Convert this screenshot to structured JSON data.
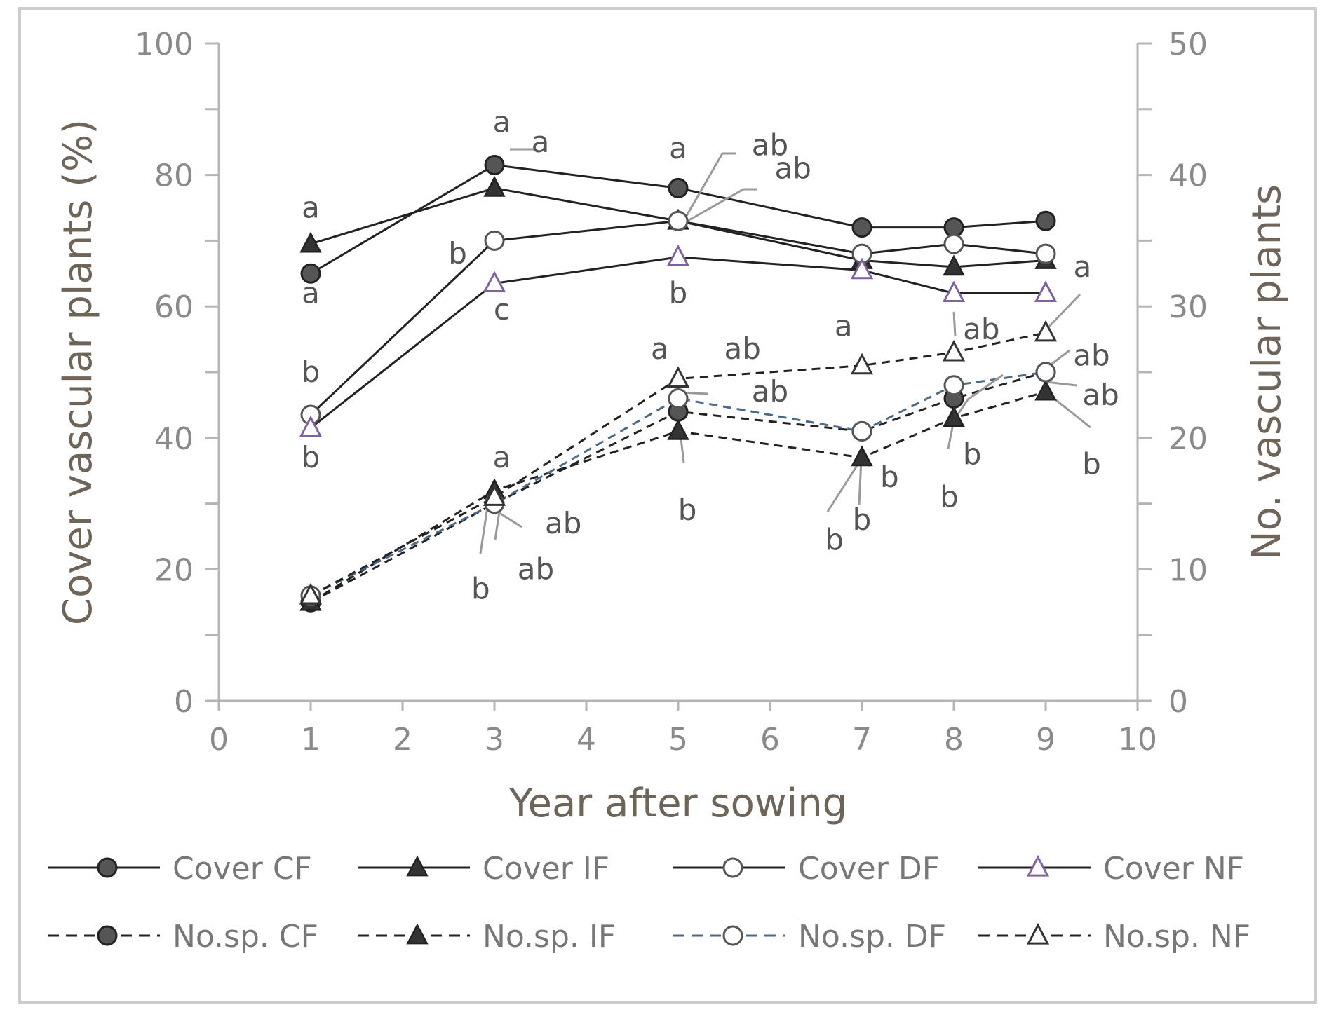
{
  "chart_data": {
    "type": "line",
    "xlabel": "Year after sowing",
    "ylabel_left": "Cover vascular plants (%)",
    "ylabel_right": "No. vascular plants",
    "xlim": [
      0,
      10
    ],
    "ylim_left": [
      0,
      100
    ],
    "ylim_right": [
      0,
      50
    ],
    "x_ticks": [
      "0",
      "1",
      "2",
      "3",
      "4",
      "5",
      "6",
      "7",
      "8",
      "9",
      "10"
    ],
    "y_left_ticks": [
      "0",
      "20",
      "40",
      "60",
      "80",
      "100"
    ],
    "y_right_ticks": [
      "0",
      "10",
      "20",
      "30",
      "40",
      "50"
    ],
    "grid": false,
    "legend_position": "bottom",
    "x": [
      1,
      3,
      5,
      7,
      8,
      9
    ],
    "series": [
      {
        "name": "Cover CF",
        "axis": "left",
        "line": "solid",
        "marker": "circle-filled",
        "color": "#222222",
        "marker_color": "#555555",
        "values": [
          65,
          81.5,
          78,
          72,
          72,
          73
        ]
      },
      {
        "name": "Cover IF",
        "axis": "left",
        "line": "solid",
        "marker": "triangle-filled",
        "color": "#222222",
        "marker_color": "#333333",
        "values": [
          69.5,
          78,
          73,
          67,
          66,
          67
        ]
      },
      {
        "name": "Cover DF",
        "axis": "left",
        "line": "solid",
        "marker": "circle-open",
        "color": "#222222",
        "marker_color": "#555555",
        "values": [
          43.5,
          70,
          73,
          68,
          69.5,
          68
        ]
      },
      {
        "name": "Cover NF",
        "axis": "left",
        "line": "solid",
        "marker": "triangle-open",
        "color": "#222222",
        "marker_color": "#8060a0",
        "values": [
          41.5,
          63.5,
          67.5,
          65.5,
          62,
          62
        ]
      },
      {
        "name": "No.sp. CF",
        "axis": "right",
        "line": "dashed",
        "marker": "circle-filled",
        "color": "#222222",
        "marker_color": "#555555",
        "values": [
          7.5,
          15,
          22,
          20.5,
          23,
          25
        ]
      },
      {
        "name": "No.sp. IF",
        "axis": "right",
        "line": "dashed",
        "marker": "triangle-filled",
        "color": "#222222",
        "marker_color": "#333333",
        "values": [
          7.5,
          16,
          20.5,
          18.5,
          21.5,
          23.5
        ]
      },
      {
        "name": "No.sp. DF",
        "axis": "right",
        "line": "dashed",
        "marker": "circle-open",
        "color": "#4a6a8a",
        "marker_color": "#555555",
        "values": [
          8,
          15,
          23,
          20.5,
          24,
          25
        ]
      },
      {
        "name": "No.sp. NF",
        "axis": "right",
        "line": "dashed",
        "marker": "triangle-open",
        "color": "#222222",
        "marker_color": "#333333",
        "values": [
          8,
          15.5,
          24.5,
          25.5,
          26.5,
          28
        ]
      }
    ],
    "annotations": [
      {
        "text": "a",
        "x": 1,
        "axis": "left",
        "y": 73.5
      },
      {
        "text": "a",
        "x": 1,
        "axis": "left",
        "y": 60.5
      },
      {
        "text": "b",
        "x": 1,
        "axis": "left",
        "y": 48.5
      },
      {
        "text": "b",
        "x": 1,
        "axis": "left",
        "y": 35.5
      },
      {
        "text": "a",
        "x": 3.08,
        "axis": "left",
        "y": 86.5
      },
      {
        "text": "a",
        "x": 3.5,
        "axis": "left",
        "y": 83.5
      },
      {
        "text": "b",
        "x": 2.6,
        "axis": "left",
        "y": 66.5
      },
      {
        "text": "c",
        "x": 3.08,
        "axis": "left",
        "y": 58
      },
      {
        "text": "a",
        "x": 3.08,
        "axis": "left",
        "y": 35.5
      },
      {
        "text": "ab",
        "x": 3.75,
        "axis": "left",
        "y": 25.5
      },
      {
        "text": "ab",
        "x": 3.45,
        "axis": "left",
        "y": 18.5
      },
      {
        "text": "b",
        "x": 2.85,
        "axis": "left",
        "y": 15.5
      },
      {
        "text": "a",
        "x": 5,
        "axis": "left",
        "y": 82.5
      },
      {
        "text": "ab",
        "x": 6,
        "axis": "left",
        "y": 83
      },
      {
        "text": "ab",
        "x": 6.25,
        "axis": "left",
        "y": 79.5
      },
      {
        "text": "b",
        "x": 5,
        "axis": "left",
        "y": 60.5
      },
      {
        "text": "a",
        "x": 4.8,
        "axis": "left",
        "y": 52
      },
      {
        "text": "ab",
        "x": 5.7,
        "axis": "left",
        "y": 52
      },
      {
        "text": "ab",
        "x": 6,
        "axis": "left",
        "y": 45.5
      },
      {
        "text": "b",
        "x": 5.1,
        "axis": "left",
        "y": 27.5
      },
      {
        "text": "a",
        "x": 6.8,
        "axis": "left",
        "y": 55.5
      },
      {
        "text": "b",
        "x": 7.3,
        "axis": "left",
        "y": 32.5
      },
      {
        "text": "b",
        "x": 7,
        "axis": "left",
        "y": 26
      },
      {
        "text": "b",
        "x": 6.7,
        "axis": "left",
        "y": 23
      },
      {
        "text": "ab",
        "x": 8.3,
        "axis": "left",
        "y": 55
      },
      {
        "text": "b",
        "x": 8.2,
        "axis": "left",
        "y": 36
      },
      {
        "text": "b",
        "x": 7.95,
        "axis": "left",
        "y": 29.5
      },
      {
        "text": "a",
        "x": 9.4,
        "axis": "left",
        "y": 64.5
      },
      {
        "text": "ab",
        "x": 9.5,
        "axis": "left",
        "y": 51
      },
      {
        "text": "ab",
        "x": 9.6,
        "axis": "left",
        "y": 45
      },
      {
        "text": "b",
        "x": 9.5,
        "axis": "left",
        "y": 34.5
      }
    ]
  }
}
